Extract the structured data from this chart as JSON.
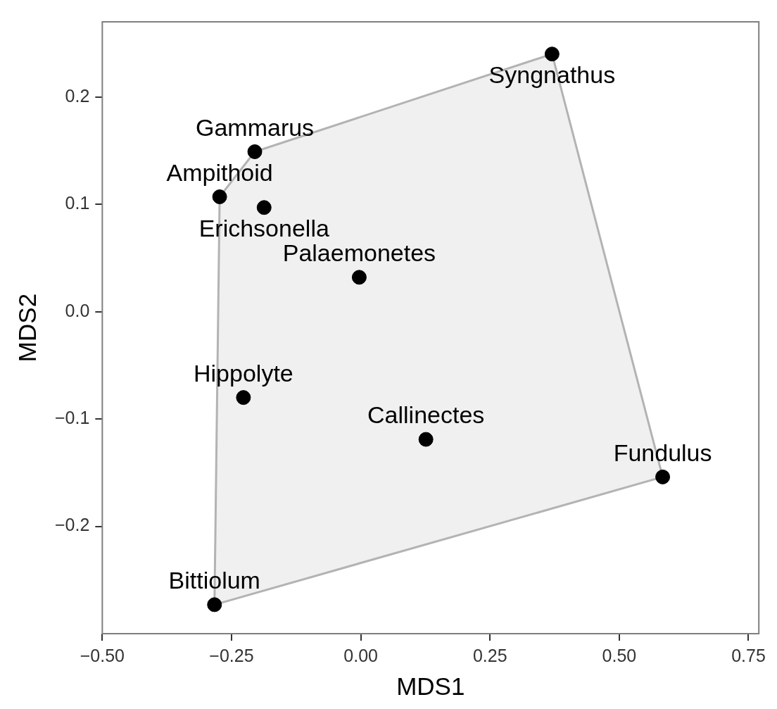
{
  "chart_data": {
    "type": "scatter",
    "xlabel": "MDS1",
    "ylabel": "MDS2",
    "xlim": [
      -0.5,
      0.77
    ],
    "ylim": [
      -0.3,
      0.27
    ],
    "xticks": [
      {
        "value": -0.5,
        "label": "−0.50"
      },
      {
        "value": -0.25,
        "label": "−0.25"
      },
      {
        "value": 0,
        "label": "0.00"
      },
      {
        "value": 0.25,
        "label": "0.25"
      },
      {
        "value": 0.5,
        "label": "0.50"
      },
      {
        "value": 0.75,
        "label": "0.75"
      }
    ],
    "yticks": [
      {
        "value": -0.2,
        "label": "−0.2"
      },
      {
        "value": -0.1,
        "label": "−0.1"
      },
      {
        "value": 0,
        "label": "0.0"
      },
      {
        "value": 0.1,
        "label": "0.1"
      },
      {
        "value": 0.2,
        "label": "0.2"
      }
    ],
    "grid": false,
    "marker": "circle",
    "series": [
      {
        "type": "area",
        "marker": "none",
        "color": "#b3b3b3",
        "x": [
          -0.283,
          -0.273,
          -0.205,
          0.37,
          0.584,
          -0.283
        ],
        "values": [
          -0.273,
          0.107,
          0.149,
          0.24,
          -0.154,
          -0.273
        ]
      },
      {
        "color": "#000000",
        "x": [
          0.37,
          -0.205,
          -0.273,
          -0.187,
          -0.003,
          -0.227,
          0.126,
          0.584,
          -0.283
        ],
        "values": [
          0.24,
          0.149,
          0.107,
          0.097,
          0.032,
          -0.08,
          -0.119,
          -0.154,
          -0.273
        ]
      }
    ],
    "annotations": [
      {
        "text": "Syngnathus",
        "x": 0.37,
        "y": 0.24
      },
      {
        "text": "Gammarus",
        "x": -0.205,
        "y": 0.149
      },
      {
        "text": "Ampithoid",
        "x": -0.273,
        "y": 0.107
      },
      {
        "text": "Erichsonella",
        "x": -0.187,
        "y": 0.097
      },
      {
        "text": "Palaemonetes",
        "x": -0.003,
        "y": 0.032
      },
      {
        "text": "Hippolyte",
        "x": -0.227,
        "y": -0.08
      },
      {
        "text": "Callinectes",
        "x": 0.126,
        "y": -0.119
      },
      {
        "text": "Fundulus",
        "x": 0.584,
        "y": -0.154
      },
      {
        "text": "Bittiolum",
        "x": -0.283,
        "y": -0.273
      }
    ]
  }
}
